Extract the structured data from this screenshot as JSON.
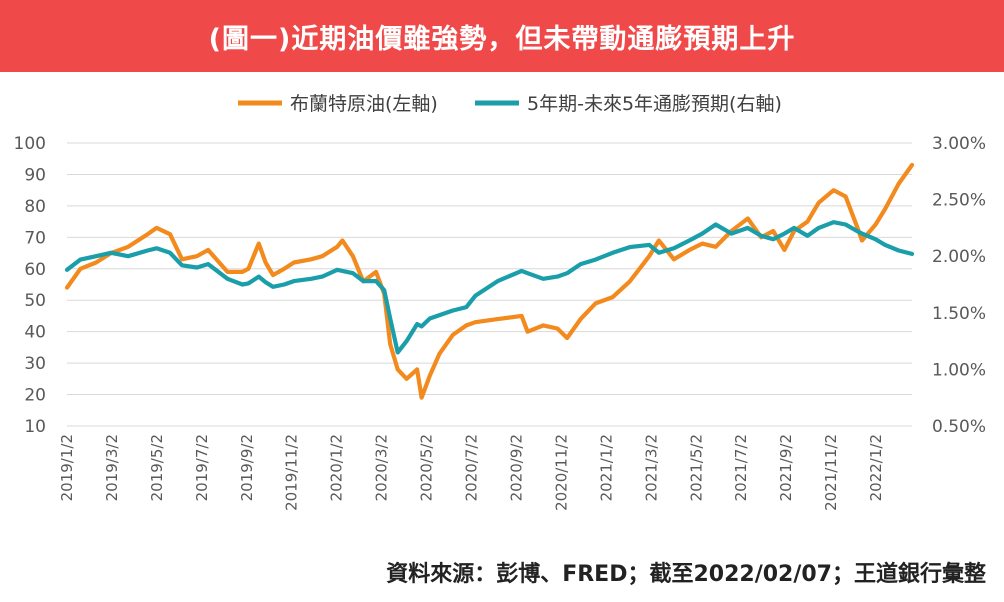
{
  "header": {
    "title": "(圖一)近期油價雖強勢，但未帶動通膨預期上升"
  },
  "footer": {
    "source": "資料來源：彭博、FRED；截至2022/02/07；王道銀行彙整"
  },
  "colors": {
    "banner": "#f0494a",
    "brent": "#f28a1e",
    "inflation": "#1a9eaa",
    "grid": "#d9d9d9"
  },
  "chart_data": {
    "type": "line",
    "legend_position": "top-center",
    "grid": true,
    "x_tick_labels": [
      "2019/1/2",
      "2019/3/2",
      "2019/5/2",
      "2019/7/2",
      "2019/9/2",
      "2019/11/2",
      "2020/1/2",
      "2020/3/2",
      "2020/5/2",
      "2020/7/2",
      "2020/9/2",
      "2020/11/2",
      "2021/1/2",
      "2021/3/2",
      "2021/5/2",
      "2021/7/2",
      "2021/9/2",
      "2021/11/2",
      "2022/1/2"
    ],
    "x_range": [
      "2019-01-02",
      "2022-02-07"
    ],
    "y_left": {
      "min": 10,
      "max": 100,
      "ticks": [
        10,
        20,
        30,
        40,
        50,
        60,
        70,
        80,
        90,
        100
      ]
    },
    "y_right": {
      "min": 0.5,
      "max": 3.0,
      "ticks": [
        "0.50%",
        "1.00%",
        "1.50%",
        "2.00%",
        "2.50%",
        "3.00%"
      ]
    },
    "series": [
      {
        "name": "布蘭特原油(左軸)",
        "axis": "left",
        "points": [
          [
            "2019-01-02",
            54
          ],
          [
            "2019-01-20",
            60
          ],
          [
            "2019-02-10",
            62
          ],
          [
            "2019-03-02",
            65
          ],
          [
            "2019-03-25",
            67
          ],
          [
            "2019-04-20",
            71
          ],
          [
            "2019-05-02",
            73
          ],
          [
            "2019-05-20",
            71
          ],
          [
            "2019-06-05",
            63
          ],
          [
            "2019-06-25",
            64
          ],
          [
            "2019-07-10",
            66
          ],
          [
            "2019-08-05",
            59
          ],
          [
            "2019-08-25",
            59
          ],
          [
            "2019-09-02",
            60
          ],
          [
            "2019-09-16",
            68
          ],
          [
            "2019-09-25",
            62
          ],
          [
            "2019-10-05",
            58
          ],
          [
            "2019-10-20",
            60
          ],
          [
            "2019-11-02",
            62
          ],
          [
            "2019-11-25",
            63
          ],
          [
            "2019-12-10",
            64
          ],
          [
            "2019-12-30",
            67
          ],
          [
            "2020-01-06",
            69
          ],
          [
            "2020-01-20",
            64
          ],
          [
            "2020-02-03",
            56
          ],
          [
            "2020-02-20",
            59
          ],
          [
            "2020-03-02",
            52
          ],
          [
            "2020-03-10",
            36
          ],
          [
            "2020-03-20",
            28
          ],
          [
            "2020-04-01",
            25
          ],
          [
            "2020-04-15",
            28
          ],
          [
            "2020-04-21",
            19
          ],
          [
            "2020-05-02",
            26
          ],
          [
            "2020-05-15",
            33
          ],
          [
            "2020-06-02",
            39
          ],
          [
            "2020-06-20",
            42
          ],
          [
            "2020-07-02",
            43
          ],
          [
            "2020-08-01",
            44
          ],
          [
            "2020-09-02",
            45
          ],
          [
            "2020-09-10",
            40
          ],
          [
            "2020-10-01",
            42
          ],
          [
            "2020-10-20",
            41
          ],
          [
            "2020-11-02",
            38
          ],
          [
            "2020-11-20",
            44
          ],
          [
            "2020-12-10",
            49
          ],
          [
            "2021-01-02",
            51
          ],
          [
            "2021-01-25",
            56
          ],
          [
            "2021-02-20",
            64
          ],
          [
            "2021-03-05",
            69
          ],
          [
            "2021-03-25",
            63
          ],
          [
            "2021-04-15",
            66
          ],
          [
            "2021-05-02",
            68
          ],
          [
            "2021-05-20",
            67
          ],
          [
            "2021-06-10",
            72
          ],
          [
            "2021-07-02",
            76
          ],
          [
            "2021-07-20",
            70
          ],
          [
            "2021-08-05",
            72
          ],
          [
            "2021-08-20",
            66
          ],
          [
            "2021-09-02",
            72
          ],
          [
            "2021-09-20",
            75
          ],
          [
            "2021-10-05",
            81
          ],
          [
            "2021-10-25",
            85
          ],
          [
            "2021-11-10",
            83
          ],
          [
            "2021-11-26",
            73
          ],
          [
            "2021-12-02",
            69
          ],
          [
            "2021-12-20",
            74
          ],
          [
            "2022-01-02",
            79
          ],
          [
            "2022-01-20",
            87
          ],
          [
            "2022-02-07",
            93
          ]
        ]
      },
      {
        "name": "5年期-未來5年通膨預期(右軸)",
        "axis": "right",
        "points": [
          [
            "2019-01-02",
            1.88
          ],
          [
            "2019-01-20",
            1.97
          ],
          [
            "2019-02-10",
            2.0
          ],
          [
            "2019-03-02",
            2.03
          ],
          [
            "2019-03-25",
            2.0
          ],
          [
            "2019-04-20",
            2.05
          ],
          [
            "2019-05-02",
            2.07
          ],
          [
            "2019-05-20",
            2.03
          ],
          [
            "2019-06-05",
            1.92
          ],
          [
            "2019-06-25",
            1.9
          ],
          [
            "2019-07-10",
            1.93
          ],
          [
            "2019-08-05",
            1.8
          ],
          [
            "2019-08-25",
            1.75
          ],
          [
            "2019-09-02",
            1.76
          ],
          [
            "2019-09-16",
            1.82
          ],
          [
            "2019-09-25",
            1.77
          ],
          [
            "2019-10-05",
            1.73
          ],
          [
            "2019-10-20",
            1.75
          ],
          [
            "2019-11-02",
            1.78
          ],
          [
            "2019-11-25",
            1.8
          ],
          [
            "2019-12-10",
            1.82
          ],
          [
            "2019-12-30",
            1.88
          ],
          [
            "2020-01-06",
            1.87
          ],
          [
            "2020-01-20",
            1.85
          ],
          [
            "2020-02-03",
            1.78
          ],
          [
            "2020-02-20",
            1.78
          ],
          [
            "2020-03-02",
            1.7
          ],
          [
            "2020-03-10",
            1.45
          ],
          [
            "2020-03-20",
            1.15
          ],
          [
            "2020-04-01",
            1.25
          ],
          [
            "2020-04-15",
            1.4
          ],
          [
            "2020-04-21",
            1.38
          ],
          [
            "2020-05-02",
            1.45
          ],
          [
            "2020-05-15",
            1.48
          ],
          [
            "2020-06-02",
            1.52
          ],
          [
            "2020-06-20",
            1.55
          ],
          [
            "2020-07-02",
            1.65
          ],
          [
            "2020-08-01",
            1.78
          ],
          [
            "2020-09-02",
            1.87
          ],
          [
            "2020-09-10",
            1.85
          ],
          [
            "2020-10-01",
            1.8
          ],
          [
            "2020-10-20",
            1.82
          ],
          [
            "2020-11-02",
            1.85
          ],
          [
            "2020-11-20",
            1.93
          ],
          [
            "2020-12-10",
            1.97
          ],
          [
            "2021-01-02",
            2.03
          ],
          [
            "2021-01-25",
            2.08
          ],
          [
            "2021-02-20",
            2.1
          ],
          [
            "2021-03-05",
            2.03
          ],
          [
            "2021-03-25",
            2.07
          ],
          [
            "2021-04-15",
            2.14
          ],
          [
            "2021-05-02",
            2.2
          ],
          [
            "2021-05-20",
            2.28
          ],
          [
            "2021-06-10",
            2.2
          ],
          [
            "2021-07-02",
            2.25
          ],
          [
            "2021-07-20",
            2.18
          ],
          [
            "2021-08-05",
            2.15
          ],
          [
            "2021-08-20",
            2.2
          ],
          [
            "2021-09-02",
            2.25
          ],
          [
            "2021-09-20",
            2.18
          ],
          [
            "2021-10-05",
            2.25
          ],
          [
            "2021-10-25",
            2.3
          ],
          [
            "2021-11-10",
            2.28
          ],
          [
            "2021-11-26",
            2.22
          ],
          [
            "2021-12-02",
            2.2
          ],
          [
            "2021-12-20",
            2.15
          ],
          [
            "2022-01-02",
            2.1
          ],
          [
            "2022-01-20",
            2.05
          ],
          [
            "2022-02-07",
            2.02
          ]
        ]
      }
    ]
  }
}
